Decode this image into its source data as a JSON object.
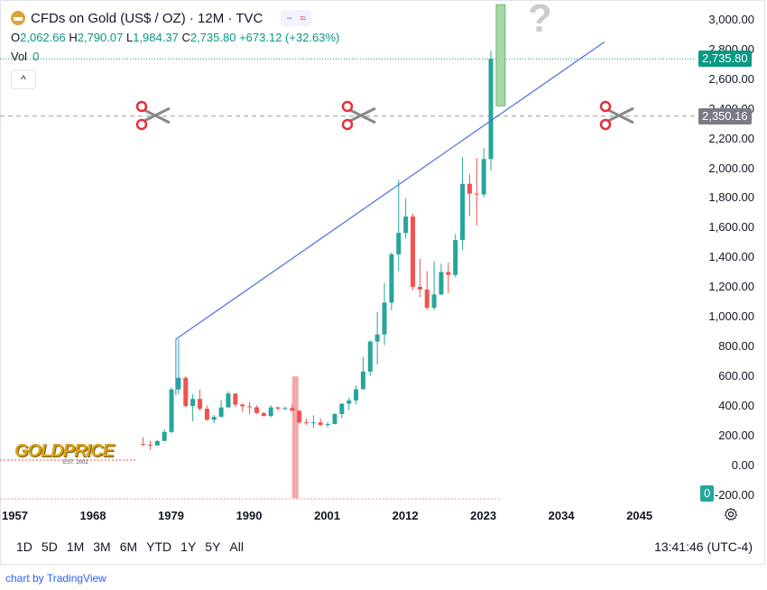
{
  "header": {
    "title": "CFDs on Gold (US$ / OZ) · 12M · TVC",
    "pill_minus": "−",
    "pill_wave": "≈"
  },
  "ohlc": {
    "o_label": "O",
    "o": "2,062.66",
    "h_label": "H",
    "h": "2,790.07",
    "l_label": "L",
    "l": "1,984.37",
    "c_label": "C",
    "c": "2,735.80",
    "change": "+673.12 (+32.63%)"
  },
  "volume": {
    "label": "Vol",
    "value": "0"
  },
  "collapse_glyph": "^",
  "question_mark": "?",
  "watermark": {
    "text": "GOLDPRICE",
    "sub": "EST. 2002"
  },
  "price_tags": {
    "last": "2,735.80",
    "marker": "2,350.16",
    "volume": "0"
  },
  "colors": {
    "up": "#26a69a",
    "down": "#ef5350",
    "trend": "#4a6ee0",
    "last": "#089981",
    "marker": "#787b86"
  },
  "range_buttons": [
    "1D",
    "5D",
    "1M",
    "3M",
    "6M",
    "YTD",
    "1Y",
    "5Y",
    "All"
  ],
  "clock": "13:41:46 (UTC-4)",
  "attribution": {
    "prefix": "chart by ",
    "brand": "TradingView"
  },
  "chart_data": {
    "type": "candlestick",
    "title": "CFDs on Gold (US$ / OZ) · 12M · TVC",
    "y_ticks": [
      "-200.00",
      "0.00",
      "200.00",
      "400.00",
      "600.00",
      "800.00",
      "1,000.00",
      "1,200.00",
      "1,400.00",
      "1,600.00",
      "1,800.00",
      "2,000.00",
      "2,200.00",
      "2,400.00",
      "2,600.00",
      "2,800.00",
      "3,000.00"
    ],
    "y_tick_values": [
      -200,
      0,
      200,
      400,
      600,
      800,
      1000,
      1200,
      1400,
      1600,
      1800,
      2000,
      2200,
      2400,
      2600,
      2800,
      3000
    ],
    "x_ticks": [
      "1957",
      "1968",
      "1979",
      "1990",
      "2001",
      "2012",
      "2023",
      "2034",
      "2045"
    ],
    "x_tick_values": [
      1957,
      1968,
      1979,
      1990,
      2001,
      2012,
      2023,
      2034,
      2045
    ],
    "ylim": [
      -220,
      3100
    ],
    "xlim": [
      1956,
      2051
    ],
    "candles": [
      {
        "year": 1975,
        "open": 145,
        "high": 190,
        "low": 130,
        "close": 140
      },
      {
        "year": 1976,
        "open": 140,
        "high": 165,
        "low": 103,
        "close": 135
      },
      {
        "year": 1977,
        "open": 135,
        "high": 170,
        "low": 130,
        "close": 165
      },
      {
        "year": 1978,
        "open": 165,
        "high": 245,
        "low": 165,
        "close": 226
      },
      {
        "year": 1979,
        "open": 226,
        "high": 525,
        "low": 216,
        "close": 512
      },
      {
        "year": 1980,
        "open": 512,
        "high": 850,
        "low": 480,
        "close": 590
      },
      {
        "year": 1981,
        "open": 590,
        "high": 600,
        "low": 390,
        "close": 400
      },
      {
        "year": 1982,
        "open": 400,
        "high": 480,
        "low": 297,
        "close": 448
      },
      {
        "year": 1983,
        "open": 448,
        "high": 510,
        "low": 370,
        "close": 382
      },
      {
        "year": 1984,
        "open": 382,
        "high": 405,
        "low": 300,
        "close": 308
      },
      {
        "year": 1985,
        "open": 308,
        "high": 340,
        "low": 285,
        "close": 327
      },
      {
        "year": 1986,
        "open": 327,
        "high": 440,
        "low": 325,
        "close": 391
      },
      {
        "year": 1987,
        "open": 391,
        "high": 500,
        "low": 390,
        "close": 484
      },
      {
        "year": 1988,
        "open": 484,
        "high": 485,
        "low": 395,
        "close": 410
      },
      {
        "year": 1989,
        "open": 410,
        "high": 420,
        "low": 360,
        "close": 398
      },
      {
        "year": 1990,
        "open": 398,
        "high": 425,
        "low": 345,
        "close": 392
      },
      {
        "year": 1991,
        "open": 392,
        "high": 405,
        "low": 345,
        "close": 353
      },
      {
        "year": 1992,
        "open": 353,
        "high": 360,
        "low": 330,
        "close": 333
      },
      {
        "year": 1993,
        "open": 333,
        "high": 405,
        "low": 326,
        "close": 391
      },
      {
        "year": 1994,
        "open": 391,
        "high": 397,
        "low": 370,
        "close": 383
      },
      {
        "year": 1995,
        "open": 383,
        "high": 397,
        "low": 372,
        "close": 387
      },
      {
        "year": 1996,
        "open": 387,
        "high": 415,
        "low": 367,
        "close": 369
      },
      {
        "year": 1997,
        "open": 369,
        "high": 370,
        "low": 283,
        "close": 290
      },
      {
        "year": 1998,
        "open": 290,
        "high": 314,
        "low": 273,
        "close": 288
      },
      {
        "year": 1999,
        "open": 288,
        "high": 338,
        "low": 252,
        "close": 290
      },
      {
        "year": 2000,
        "open": 290,
        "high": 317,
        "low": 263,
        "close": 273
      },
      {
        "year": 2001,
        "open": 273,
        "high": 294,
        "low": 255,
        "close": 279
      },
      {
        "year": 2002,
        "open": 279,
        "high": 350,
        "low": 277,
        "close": 347
      },
      {
        "year": 2003,
        "open": 347,
        "high": 420,
        "low": 319,
        "close": 416
      },
      {
        "year": 2004,
        "open": 416,
        "high": 456,
        "low": 373,
        "close": 438
      },
      {
        "year": 2005,
        "open": 438,
        "high": 540,
        "low": 411,
        "close": 513
      },
      {
        "year": 2006,
        "open": 513,
        "high": 730,
        "low": 512,
        "close": 632
      },
      {
        "year": 2007,
        "open": 632,
        "high": 842,
        "low": 603,
        "close": 834
      },
      {
        "year": 2008,
        "open": 834,
        "high": 1033,
        "low": 680,
        "close": 882
      },
      {
        "year": 2009,
        "open": 882,
        "high": 1227,
        "low": 810,
        "close": 1096
      },
      {
        "year": 2010,
        "open": 1096,
        "high": 1432,
        "low": 1044,
        "close": 1421
      },
      {
        "year": 2011,
        "open": 1421,
        "high": 1921,
        "low": 1308,
        "close": 1565
      },
      {
        "year": 2012,
        "open": 1565,
        "high": 1796,
        "low": 1527,
        "close": 1675
      },
      {
        "year": 2013,
        "open": 1675,
        "high": 1694,
        "low": 1180,
        "close": 1202
      },
      {
        "year": 2014,
        "open": 1202,
        "high": 1392,
        "low": 1132,
        "close": 1184
      },
      {
        "year": 2015,
        "open": 1184,
        "high": 1308,
        "low": 1046,
        "close": 1061
      },
      {
        "year": 2016,
        "open": 1061,
        "high": 1375,
        "low": 1046,
        "close": 1151
      },
      {
        "year": 2017,
        "open": 1151,
        "high": 1357,
        "low": 1146,
        "close": 1302
      },
      {
        "year": 2018,
        "open": 1302,
        "high": 1366,
        "low": 1160,
        "close": 1282
      },
      {
        "year": 2019,
        "open": 1282,
        "high": 1557,
        "low": 1266,
        "close": 1517
      },
      {
        "year": 2020,
        "open": 1517,
        "high": 2075,
        "low": 1451,
        "close": 1895
      },
      {
        "year": 2021,
        "open": 1895,
        "high": 1959,
        "low": 1677,
        "close": 1829
      },
      {
        "year": 2022,
        "open": 1829,
        "high": 2070,
        "low": 1615,
        "close": 1824
      },
      {
        "year": 2023,
        "open": 1824,
        "high": 2135,
        "low": 1805,
        "close": 2062
      },
      {
        "year": 2024,
        "open": 2062,
        "high": 2790,
        "low": 1984,
        "close": 2736
      }
    ],
    "projection_box": {
      "year_start": 2025,
      "year_end": 2026,
      "low": 2420,
      "high": 3100
    },
    "shaded_column": {
      "year": 1996.5,
      "from": -220,
      "to": 600
    },
    "trendline": {
      "x1": 1980,
      "y1": 850,
      "x2": 2040,
      "y2": 2850
    },
    "horizontal_line": 2350.16,
    "last_price_line": 2735.8
  }
}
